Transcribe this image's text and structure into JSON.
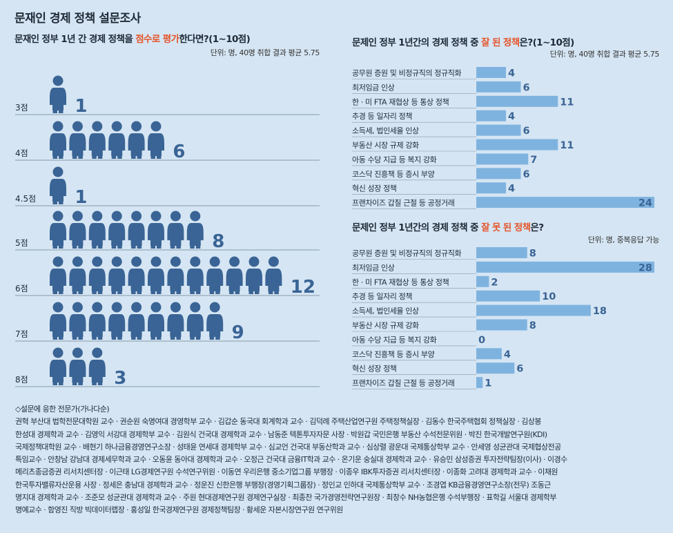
{
  "title": "문재인 경제 정책 설문조사",
  "score": {
    "title_pre": "문재인 정부 1년 간 경제 정책을 ",
    "title_hl": "점수로 평가",
    "title_post": "한다면?(1~10점)",
    "unit": "단위: 명, 40명 취합 결과 평균 5.75",
    "chart_data": {
      "type": "bar",
      "categories": [
        "3점",
        "4점",
        "4.5점",
        "5점",
        "6점",
        "7점",
        "8점"
      ],
      "values": [
        1,
        6,
        1,
        8,
        12,
        9,
        3
      ]
    }
  },
  "good": {
    "title_pre": "문제인 정부 1년간의 경제 정책 중 ",
    "title_hl": "잘 된 정책",
    "title_post": "은?(1~10점)",
    "unit": "단위: 명, 40명 취합 결과 평균 5.75",
    "chart_data": {
      "type": "bar",
      "categories": [
        "공무원 증원 및 비정규직의 정규직화",
        "최저임금 인상",
        "한 · 미 FTA 재협상 등 통상 정책",
        "추경 등 일자리 정책",
        "소득세, 법인세율 인상",
        "부동산 시장 규제 강화",
        "아동 수당 지급 등 복지 강화",
        "코스닥 진흥책 등 증시 부양",
        "혁신 성장 정책",
        "프랜차이즈 갑질 근절 등 공정거래"
      ],
      "values": [
        4,
        6,
        11,
        4,
        6,
        11,
        7,
        6,
        4,
        24
      ],
      "xlim": [
        0,
        24
      ]
    }
  },
  "bad": {
    "title_pre": "문제인 정부 1년간의 경제 정책 중 ",
    "title_hl": "잘 못 된 정책",
    "title_post": "은?",
    "unit": "단위: 명, 중복응답 가능",
    "chart_data": {
      "type": "bar",
      "categories": [
        "공무원 증원 및 비정규직의 정규직화",
        "최저임금 인상",
        "한 · 미 FTA 재협상 등 통상 정책",
        "추경 등 일자리 정책",
        "소득세, 법인세율 인상",
        "부동산 시장 규제 강화",
        "아동 수당 지급 등 복지 강화",
        "코스닥 진흥책 등 증시 부양",
        "혁신 성장 정책",
        "프랜차이즈 갑질 근절 등 공정거래"
      ],
      "values": [
        8,
        28,
        2,
        10,
        18,
        8,
        0,
        4,
        6,
        1
      ],
      "xlim": [
        0,
        28
      ]
    }
  },
  "experts": {
    "heading": "◇설문에 응한 전문가(가나다순)",
    "lines": [
      "권혁 부산대 법학전문대학원 교수 · 권순원 숙명여대 경영학부 교수 · 김갑순 동국대 회계학과 교수 · 김덕례 주택산업연구원 주택정책실장 · 김동수 한국주택협회 정책실장 · 김상봉",
      "한성대 경제학과 교수 · 김영익 서강대 경제학부 교수 · 김원식 건국대 경제학과 교수 · 남동준 텍톤투자자문 사장 · 박원갑 국민은행 부동산 수석전문위원 · 박진 한국개발연구원(KDI)",
      "국제정책대학원 교수 · 배현기 하나금융경영연구소장 · 성태윤 연세대 경제학부 교수 · 심교언 건국대 부동산학과 교수 · 심상렬 광운대 국제통상학부 교수 · 안세영 성균관대 국제협상전공",
      "특임교수 · 안창남 강남대 경제세무학과 교수 · 오동윤 동아대 경제학과 교수 · 오정근 건국대 금융IT학과 교수 · 온기운 숭실대 경제학과 교수 · 유승민 삼성증권 투자전략팀장(이사) · 이경수",
      "메리츠종금증권 리서치센터장 · 이근태 LG경제연구원 수석연구위원 · 이동연 우리은행 중소기업그룹 부행장 · 이종우 IBK투자증권 리서치센터장 · 이종화 고려대 경제학과 교수 · 이채원",
      "한국투자밸류자산운용 사장 · 정세은 충남대 경제학과 교수 · 정운진 신한은행 부행장(경영기획그룹장) · 정인교 인하대 국제통상학부 교수 · 조경엽 KB금융경영연구소장(전무) 조동근",
      "명지대 경제학과 교수 · 조준모 성균관대 경제학과 교수 · 주원 현대경제연구원 경제연구실장 · 최종찬 국가경영전략연구원장 · 최창수 NH농협은행 수석부행장 · 표학길 서울대 경제학부",
      "명예교수 · 함영진 직방 빅데이터랩장 · 홍성일 한국경제연구원 경제정책팀장 · 황세운 자본시장연구원 연구위원"
    ]
  },
  "colors": {
    "background": "#d5e5f3",
    "person": "#3a6495",
    "bar": "#7fb3df",
    "bar_label": "#3a6495",
    "highlight": "#e5542a",
    "rule": "#8899a8"
  }
}
